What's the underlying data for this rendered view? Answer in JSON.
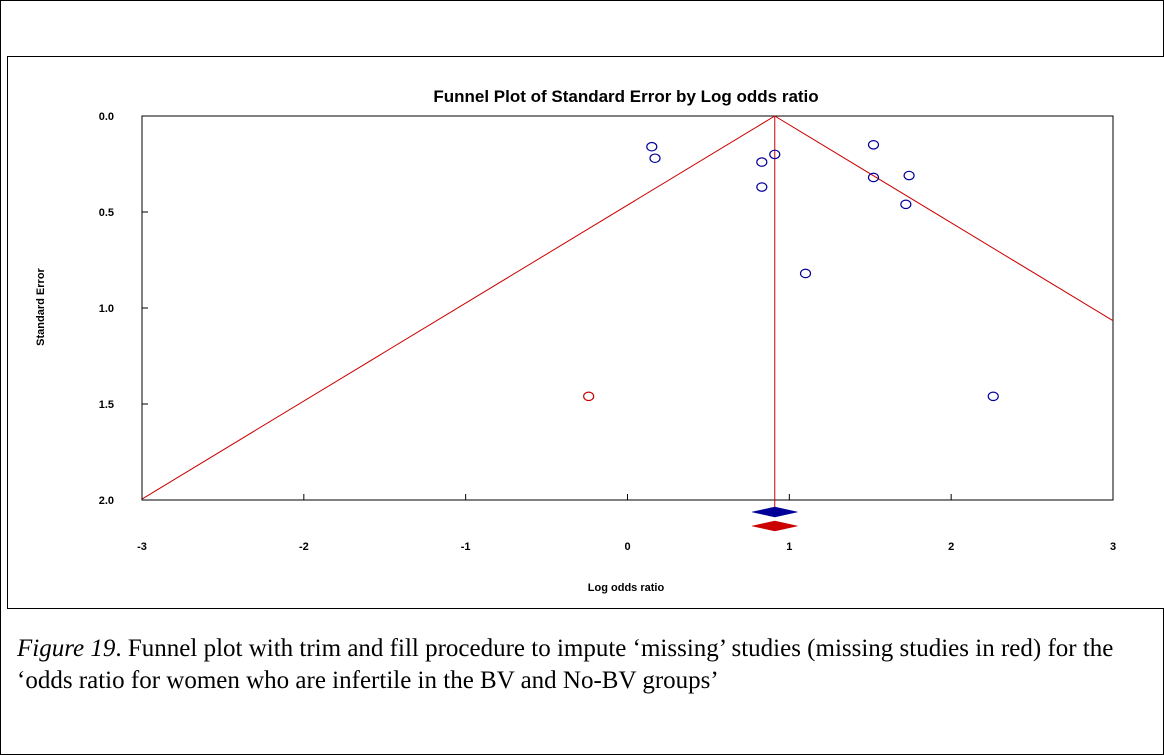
{
  "chart_data": {
    "type": "scatter",
    "title": "Funnel Plot of Standard Error by Log odds ratio",
    "xlabel": "Log odds ratio",
    "ylabel": "Standard Error",
    "xlim": [
      -3,
      3
    ],
    "ylim": [
      0,
      2
    ],
    "y_inverted": true,
    "x_ticks": [
      "-3",
      "-2",
      "-1",
      "0",
      "1",
      "2",
      "3"
    ],
    "y_ticks": [
      "0.0",
      "0.5",
      "1.0",
      "1.5",
      "2.0"
    ],
    "grid": false,
    "funnel_center": 0.91,
    "funnel_color": "#cc0000",
    "observed_color": "#000099",
    "imputed_color": "#cc0000",
    "observed_points": [
      {
        "x": 0.15,
        "y": 0.16
      },
      {
        "x": 0.17,
        "y": 0.22
      },
      {
        "x": 0.83,
        "y": 0.24
      },
      {
        "x": 0.91,
        "y": 0.2
      },
      {
        "x": 0.83,
        "y": 0.37
      },
      {
        "x": 1.52,
        "y": 0.15
      },
      {
        "x": 1.52,
        "y": 0.32
      },
      {
        "x": 1.74,
        "y": 0.31
      },
      {
        "x": 1.72,
        "y": 0.46
      },
      {
        "x": 1.1,
        "y": 0.82
      },
      {
        "x": 2.26,
        "y": 1.46
      }
    ],
    "imputed_points": [
      {
        "x": -0.24,
        "y": 1.46
      }
    ],
    "summary_diamonds": [
      {
        "label": "observed",
        "estimate": 0.91,
        "lower": 0.77,
        "upper": 1.05,
        "color": "#000099"
      },
      {
        "label": "imputed",
        "estimate": 0.91,
        "lower": 0.77,
        "upper": 1.05,
        "color": "#cc0000"
      }
    ]
  },
  "caption": {
    "label": "Figure 19",
    "text": ". Funnel plot with trim and fill procedure to impute ‘missing’ studies (missing studies in red) for the ‘odds ratio for women who are infertile in the BV and No-BV groups’"
  }
}
